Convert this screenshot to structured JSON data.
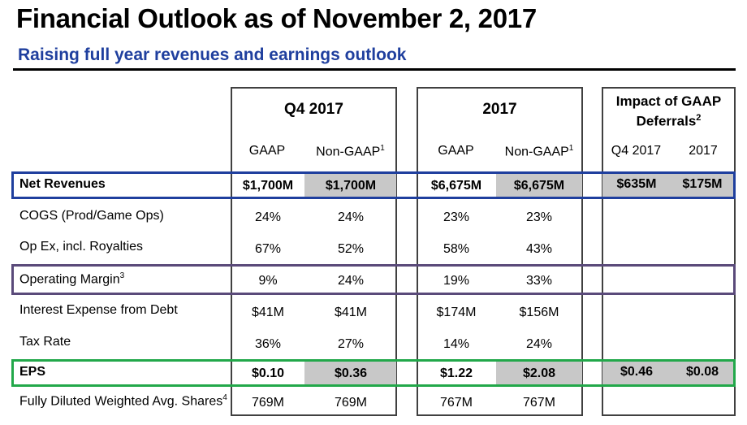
{
  "title": "Financial Outlook as of November 2, 2017",
  "subtitle": "Raising full year revenues and earnings outlook",
  "groups": {
    "q4": "Q4 2017",
    "fy": "2017",
    "impact_line1": "Impact of GAAP",
    "impact_line2": "Deferrals",
    "impact_sup": "2"
  },
  "columns": {
    "gaap": "GAAP",
    "non_gaap": "Non-GAAP",
    "non_gaap_sup": "1",
    "impact_q4": "Q4 2017",
    "impact_fy": "2017"
  },
  "rows": [
    {
      "label": "Net Revenues",
      "sup": "",
      "values": [
        "$1,700M",
        "$1,700M",
        "$6,675M",
        "$6,675M",
        "$635M",
        "$175M"
      ]
    },
    {
      "label": "COGS (Prod/Game Ops)",
      "sup": "",
      "values": [
        "24%",
        "24%",
        "23%",
        "23%",
        "",
        ""
      ]
    },
    {
      "label": "Op Ex, incl. Royalties",
      "sup": "",
      "values": [
        "67%",
        "52%",
        "58%",
        "43%",
        "",
        ""
      ]
    },
    {
      "label": "Operating Margin",
      "sup": "3",
      "values": [
        "9%",
        "24%",
        "19%",
        "33%",
        "",
        ""
      ]
    },
    {
      "label": "Interest Expense from Debt",
      "sup": "",
      "values": [
        "$41M",
        "$41M",
        "$174M",
        "$156M",
        "",
        ""
      ]
    },
    {
      "label": "Tax Rate",
      "sup": "",
      "values": [
        "36%",
        "27%",
        "14%",
        "24%",
        "",
        ""
      ]
    },
    {
      "label": "EPS",
      "sup": "",
      "values": [
        "$0.10",
        "$0.36",
        "$1.22",
        "$2.08",
        "$0.46",
        "$0.08"
      ]
    },
    {
      "label": "Fully Diluted Weighted Avg. Shares",
      "sup": "4",
      "values": [
        "769M",
        "769M",
        "767M",
        "767M",
        "",
        ""
      ]
    }
  ],
  "colors": {
    "net_revenues_highlight": "#1f3f9e",
    "operating_margin_highlight": "#5a4a7a",
    "eps_highlight": "#22a84a",
    "non_gaap_shading": "#c8c8c8"
  }
}
